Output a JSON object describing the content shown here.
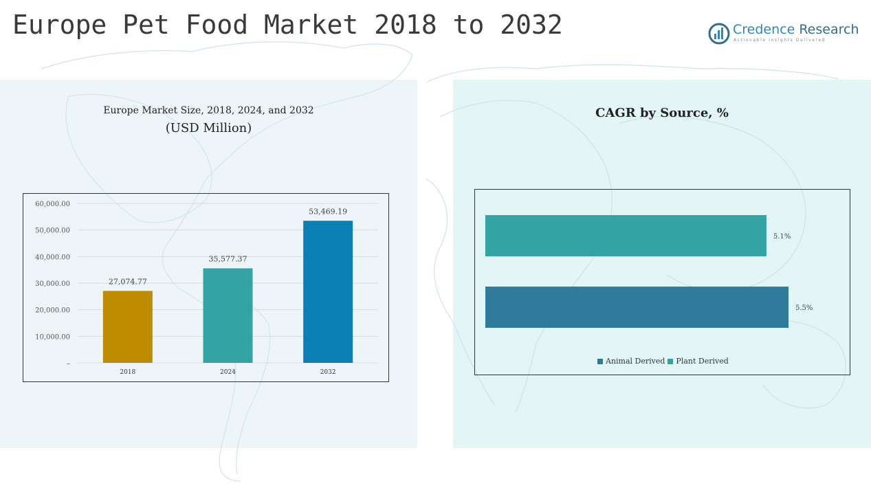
{
  "page": {
    "title": "Europe Pet Food Market 2018 to 2032"
  },
  "logo": {
    "name_part1": "Credence",
    "name_part2": "Research",
    "tagline": "Actionable Insights Delivered",
    "colors": {
      "primary": "#2e86c1",
      "dark": "#2e6f8e"
    }
  },
  "chart_data": [
    {
      "type": "bar",
      "title": "Europe Market Size, 2018, 2024, and 2032",
      "subtitle": "(USD Million)",
      "categories": [
        "2018",
        "2024",
        "2032"
      ],
      "values": [
        27074.77,
        35577.37,
        53469.19
      ],
      "value_labels": [
        "27,074.77",
        "35,577.37",
        "53,469.19"
      ],
      "colors": [
        "#bf8b00",
        "#33a3a3",
        "#0a7fb4"
      ],
      "ylim": [
        0,
        60000
      ],
      "yticks": [
        0,
        10000,
        20000,
        30000,
        40000,
        50000,
        60000
      ],
      "ytick_labels": [
        "–",
        "10,000.00",
        "20,000.00",
        "30,000.00",
        "40,000.00",
        "50,000.00",
        "60,000.00"
      ],
      "grid": true
    },
    {
      "type": "bar",
      "orientation": "horizontal",
      "title": "CAGR by Source, %",
      "categories": [
        "Plant Derived",
        "Animal Derived"
      ],
      "values": [
        5.1,
        5.5
      ],
      "value_labels": [
        "5.1%",
        "5.5%"
      ],
      "colors": [
        "#33a3a3",
        "#2f7b9c"
      ],
      "legend": {
        "placement": "bottom-center",
        "entries": [
          {
            "label": "Animal Derived",
            "color": "#2f7b9c"
          },
          {
            "label": "Plant Derived",
            "color": "#33a3a3"
          }
        ]
      }
    }
  ]
}
